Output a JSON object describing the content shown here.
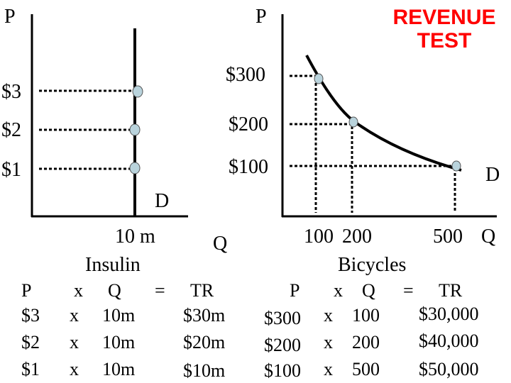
{
  "title": "REVENUE TEST",
  "colors": {
    "title": "#ff0000",
    "axis": "#000000",
    "point_fill": "#b9d3dc"
  },
  "left_graph": {
    "y_axis_label": "P",
    "x_axis_label": "Q",
    "price_labels": [
      "$3",
      "$2",
      "$1"
    ],
    "curve_label": "D",
    "quantity_tick": "10 m",
    "good": "Insulin"
  },
  "right_graph": {
    "y_axis_label": "P",
    "x_axis_label": "Q",
    "price_labels": [
      "$300",
      "$200",
      "$100"
    ],
    "curve_label": "D",
    "quantity_ticks": [
      "100",
      "200",
      "500"
    ],
    "good": "Bicycles"
  },
  "left_table": {
    "header": {
      "p": "P",
      "x": "x",
      "q": "Q",
      "eq": "=",
      "tr": "TR"
    },
    "rows": [
      {
        "p": "$3",
        "x": "x",
        "q": "10m",
        "tr": "$30m"
      },
      {
        "p": "$2",
        "x": "x",
        "q": "10m",
        "tr": "$20m"
      },
      {
        "p": "$1",
        "x": "x",
        "q": "10m",
        "tr": "$10m"
      }
    ]
  },
  "right_table": {
    "header": {
      "p": "P",
      "x": "x",
      "q": "Q",
      "eq": "=",
      "tr": "TR"
    },
    "rows": [
      {
        "p": "$300",
        "x": "x",
        "q": "100",
        "tr": "$30,000"
      },
      {
        "p": "$200",
        "x": "x",
        "q": "200",
        "tr": "$40,000"
      },
      {
        "p": "$100",
        "x": "x",
        "q": "500",
        "tr": "$50,000"
      }
    ]
  }
}
